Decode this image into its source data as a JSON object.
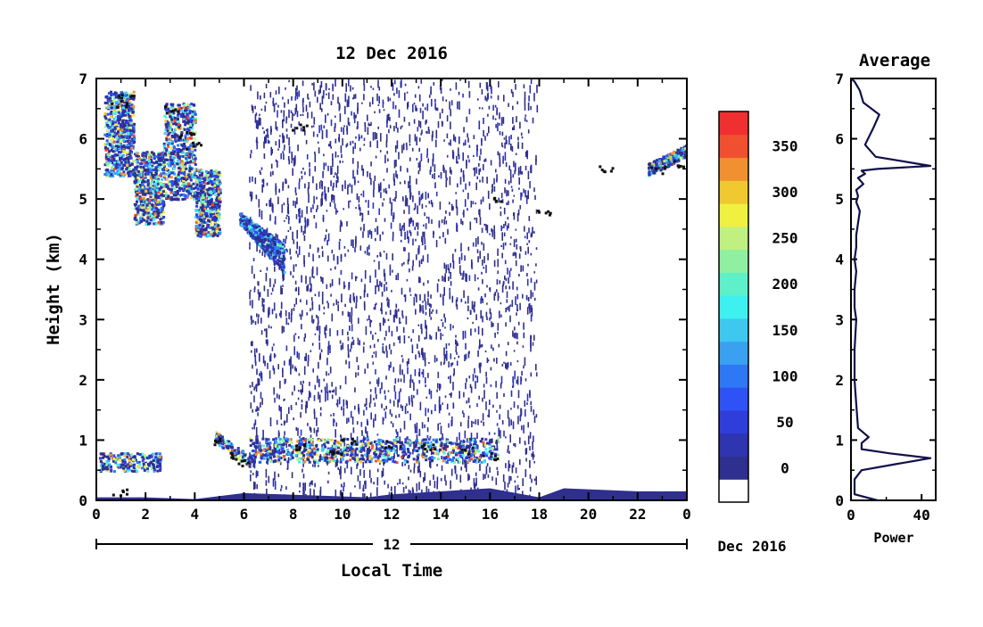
{
  "chart_data": [
    {
      "type": "heatmap",
      "title": "12 Dec 2016",
      "xlabel": "Local Time",
      "ylabel": "Height (km)",
      "xlim": [
        0,
        24
      ],
      "ylim": [
        0,
        7
      ],
      "x_tick_labels": [
        "0",
        "2",
        "4",
        "6",
        "8",
        "10",
        "12",
        "14",
        "16",
        "18",
        "20",
        "22",
        "0"
      ],
      "y_tick_labels": [
        "0",
        "1",
        "2",
        "3",
        "4",
        "5",
        "6",
        "7"
      ],
      "date_bar": {
        "day_label": "12",
        "month_label": "Dec 2016"
      },
      "colorbar": {
        "labels": [
          "0",
          "50",
          "100",
          "150",
          "200",
          "250",
          "300",
          "350"
        ],
        "levels": [
          0,
          25,
          50,
          75,
          100,
          125,
          150,
          175,
          200,
          225,
          250,
          275,
          300,
          325,
          350,
          375
        ],
        "colors": [
          "#ffffff",
          "#2f2f8f",
          "#2f34b0",
          "#2f3ddb",
          "#2f52f5",
          "#2f78f5",
          "#3aa0f0",
          "#3ec8f0",
          "#3ef0f0",
          "#5ef0c8",
          "#8ef0a0",
          "#c0f080",
          "#f0f040",
          "#f0c830",
          "#f09030",
          "#f05030",
          "#f03030"
        ]
      },
      "features": [
        {
          "name": "cirrus layer early morning",
          "x": [
            0.3,
            5.0
          ],
          "y": [
            4.4,
            6.8
          ],
          "max_value": 380
        },
        {
          "name": "descending cloud",
          "x": [
            5.8,
            7.6
          ],
          "y": [
            3.7,
            4.6
          ],
          "max_value": 220
        },
        {
          "name": "noise region",
          "x": [
            6.2,
            17.9
          ],
          "y": [
            0,
            7
          ],
          "max_value": 50
        },
        {
          "name": "boundary layer top",
          "x": [
            4.8,
            16.3
          ],
          "y": [
            0.6,
            1.1
          ],
          "max_value": 380
        },
        {
          "name": "early boundary layer",
          "x": [
            0.1,
            2.6
          ],
          "y": [
            0.5,
            0.8
          ],
          "max_value": 380
        },
        {
          "name": "late cirrus",
          "x": [
            22.4,
            24.0
          ],
          "y": [
            5.4,
            5.8
          ],
          "max_value": 380
        }
      ]
    },
    {
      "type": "line",
      "title": "Average",
      "xlabel": "Power",
      "ylabel": "",
      "xlim": [
        0,
        48
      ],
      "ylim": [
        0,
        7
      ],
      "x_tick_labels": [
        "0",
        "40"
      ],
      "y_tick_labels": [
        "0",
        "1",
        "2",
        "3",
        "4",
        "5",
        "6",
        "7"
      ],
      "series": [
        {
          "x": [
            15,
            2,
            2,
            6,
            25,
            45,
            22,
            6,
            6,
            10,
            4,
            3,
            2,
            2,
            3,
            2,
            2,
            3,
            2,
            3,
            3,
            4,
            5,
            3,
            4,
            3,
            7,
            4,
            8,
            6,
            15,
            45,
            14,
            8,
            13,
            16,
            7,
            5,
            2,
            0
          ],
          "y": [
            0.0,
            0.1,
            0.35,
            0.5,
            0.6,
            0.7,
            0.78,
            0.85,
            0.95,
            1.05,
            1.2,
            1.6,
            2.0,
            2.5,
            3.0,
            3.2,
            3.5,
            3.8,
            4.0,
            4.2,
            4.4,
            4.6,
            4.8,
            4.95,
            5.05,
            5.15,
            5.25,
            5.35,
            5.42,
            5.47,
            5.5,
            5.55,
            5.7,
            5.9,
            6.2,
            6.4,
            6.6,
            6.8,
            6.95,
            7.0
          ]
        }
      ]
    }
  ]
}
